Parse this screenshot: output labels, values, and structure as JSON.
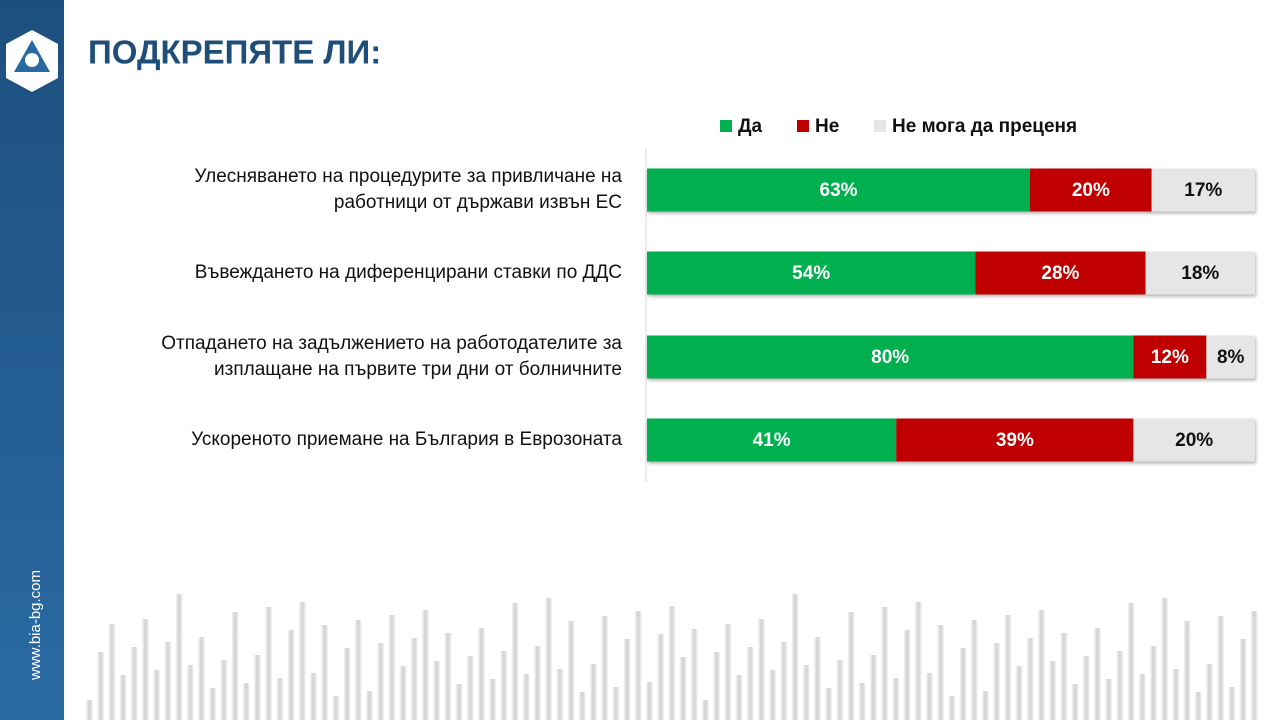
{
  "chart_data": {
    "type": "stacked_barh",
    "title": "ПОДКРЕПЯТЕ ЛИ:",
    "site": "www.bia-bg.com",
    "categories": [
      "Улесняването на процедурите за привличане на\nработници от държави извън ЕС",
      "Въвеждането на диференцирани ставки по ДДС",
      "Отпадането на задължението на работодателите за\nизплащане на първите три дни от болничните",
      "Ускореното приемане на България в Еврозоната"
    ],
    "series": [
      {
        "name": "Да",
        "color": "#00b050",
        "values": [
          63,
          54,
          80,
          41
        ],
        "value_labels": [
          "63%",
          "54%",
          "80%",
          "41%"
        ]
      },
      {
        "name": "Не",
        "color": "#c00000",
        "values": [
          20,
          28,
          12,
          39
        ],
        "value_labels": [
          "20%",
          "28%",
          "12%",
          "39%"
        ]
      },
      {
        "name": "Не мога да преценя",
        "color": "#e6e6e6",
        "values": [
          17,
          18,
          8,
          20
        ],
        "value_labels": [
          "17%",
          "18%",
          "8%",
          "20%"
        ]
      }
    ],
    "xlim": [
      0,
      100
    ],
    "legend": "top"
  }
}
